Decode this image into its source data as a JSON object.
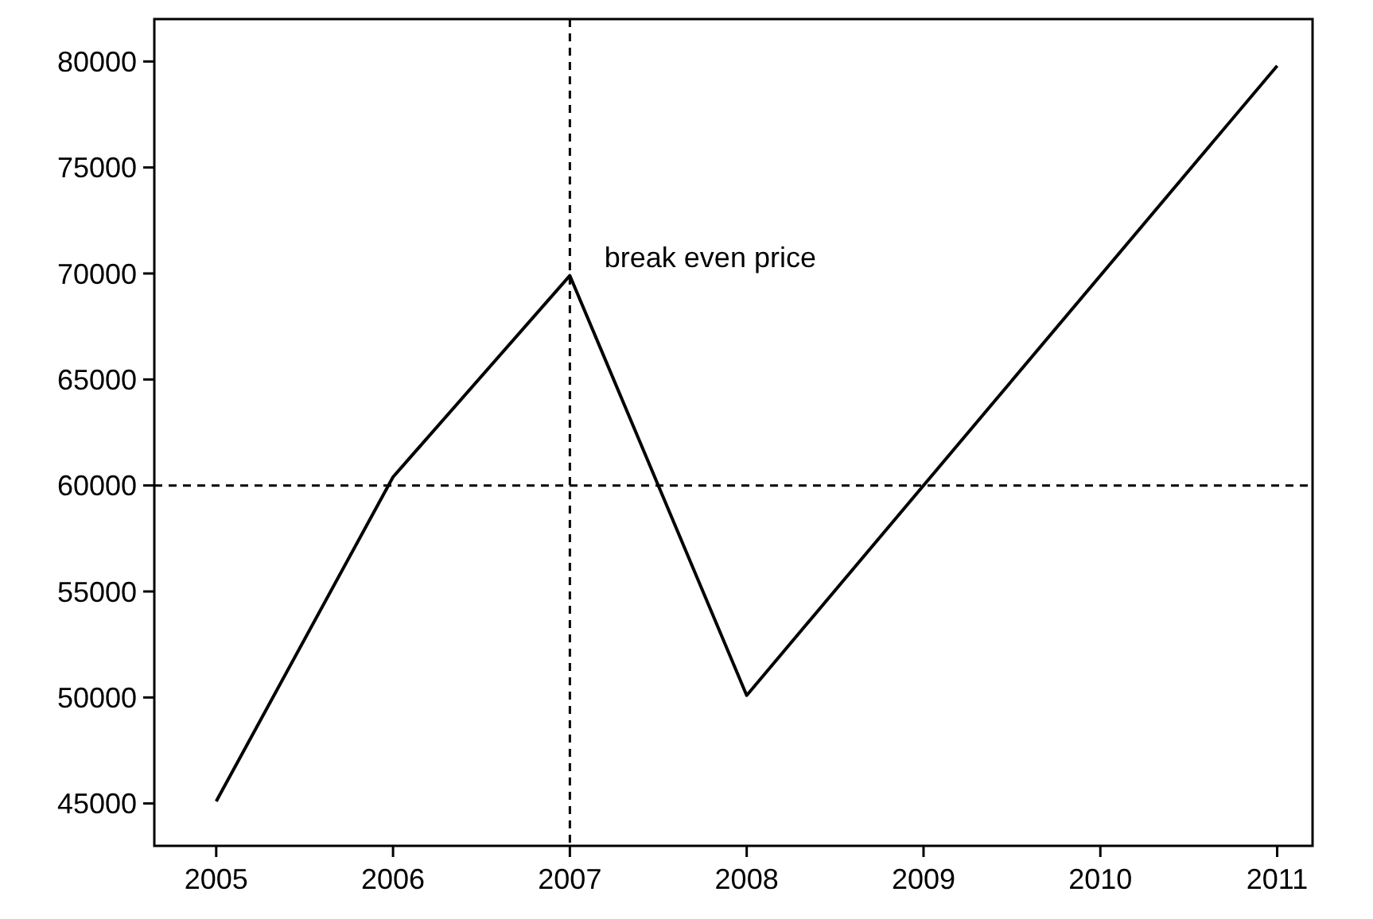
{
  "chart_data": {
    "type": "line",
    "x": [
      2005,
      2006,
      2007,
      2008,
      2011
    ],
    "series": [
      {
        "color": "#000000",
        "values": [
          45100,
          60400,
          69900,
          50100,
          79800
        ]
      }
    ],
    "xlim": [
      2004.65,
      2011.2
    ],
    "ylim": [
      43000,
      82000
    ],
    "xticks": [
      2005,
      2006,
      2007,
      2008,
      2009,
      2010,
      2011
    ],
    "yticks": [
      45000,
      50000,
      55000,
      60000,
      65000,
      70000,
      75000,
      80000
    ],
    "ref_lines": [
      {
        "axis": "y",
        "value": 60000,
        "color": "#000000",
        "line_style": "dashed"
      },
      {
        "axis": "x",
        "value": 2007,
        "color": "#000000",
        "line_style": "dashed"
      }
    ],
    "annotations": [
      "break even price"
    ],
    "grid": false,
    "marker": "none",
    "line_style": "solid"
  }
}
